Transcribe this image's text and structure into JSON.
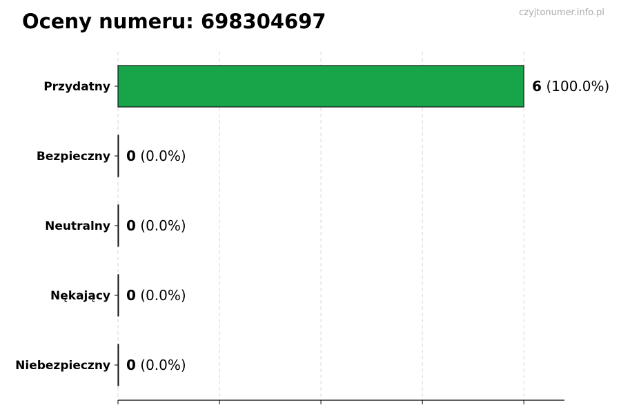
{
  "chart_data": {
    "type": "bar",
    "orientation": "horizontal",
    "title": "Oceny numeru: 698304697",
    "watermark": "czyjtonumer.info.pl",
    "categories": [
      "Przydatny",
      "Bezpieczny",
      "Neutralny",
      "Nękający",
      "Niebezpieczny"
    ],
    "values": [
      6,
      0,
      0,
      0,
      0
    ],
    "percent_labels": [
      "(100.0%)",
      "(0.0%)",
      "(0.0%)",
      "(0.0%)",
      "(0.0%)"
    ],
    "xlim": [
      0,
      6.6
    ],
    "xticks": [
      0,
      1.5,
      3,
      4.5,
      6
    ],
    "xtick_labels_shown": false,
    "grid": "x, dashed",
    "bar_color": "#18a54a",
    "xlabel": "",
    "ylabel": ""
  }
}
